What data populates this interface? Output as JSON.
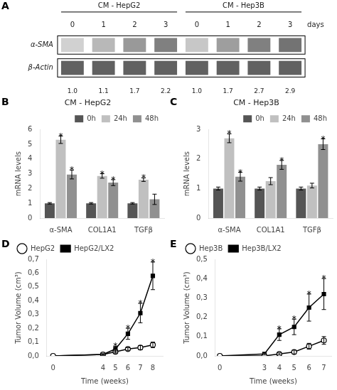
{
  "chart_data": [
    {
      "type": "blot",
      "annotations": [
        "A",
        "α-SMA",
        "β-Actin"
      ],
      "xlabel": "days",
      "categories": [
        0,
        1,
        2,
        3
      ],
      "series": [
        {
          "name": "CM - HepG2",
          "values": [
            1.0,
            1.1,
            1.7,
            2.2
          ],
          "value_labels": [
            "1.0",
            "1.1",
            "1.7",
            "2.2"
          ]
        },
        {
          "name": "CM - Hep3B",
          "values": [
            1.0,
            1.7,
            2.7,
            2.9
          ],
          "value_labels": [
            "1.0",
            "1.7",
            "2.7",
            "2.9"
          ]
        }
      ],
      "data_labels": true
    },
    {
      "type": "bar",
      "title": "CM - HepG2",
      "annotations": [
        "B"
      ],
      "ylabel": "mRNA levels",
      "categories": [
        "α-SMA",
        "COL1A1",
        "TGFβ"
      ],
      "series": [
        {
          "name": "0h",
          "color": "#555555",
          "values": [
            1.0,
            1.0,
            1.0
          ],
          "errors": [
            0.05,
            0.05,
            0.05
          ]
        },
        {
          "name": "24h",
          "color": "#c0c0c0",
          "values": [
            5.3,
            2.85,
            2.6
          ],
          "errors": [
            0.25,
            0.15,
            0.12
          ],
          "annotations": [
            "*",
            "*",
            "*"
          ]
        },
        {
          "name": "48h",
          "color": "#909090",
          "values": [
            2.95,
            2.4,
            1.27
          ],
          "errors": [
            0.3,
            0.2,
            0.35
          ],
          "annotations": [
            "*",
            "*",
            null
          ]
        }
      ],
      "ylim": [
        0,
        6
      ],
      "yticks": [
        0,
        1,
        2,
        3,
        4,
        5,
        6
      ],
      "grid": false,
      "legend": "upper right"
    },
    {
      "type": "bar",
      "title": "CM - Hep3B",
      "annotations": [
        "C"
      ],
      "ylabel": "mRNA levels",
      "categories": [
        "α-SMA",
        "COL1A1",
        "TGFβ"
      ],
      "series": [
        {
          "name": "0h",
          "color": "#555555",
          "values": [
            1.0,
            1.0,
            1.0
          ],
          "errors": [
            0.05,
            0.05,
            0.05
          ]
        },
        {
          "name": "24h",
          "color": "#c0c0c0",
          "values": [
            2.7,
            1.25,
            1.1
          ],
          "errors": [
            0.15,
            0.12,
            0.08
          ],
          "annotations": [
            "*",
            null,
            null
          ]
        },
        {
          "name": "48h",
          "color": "#909090",
          "values": [
            1.4,
            1.8,
            2.5
          ],
          "errors": [
            0.15,
            0.15,
            0.18
          ],
          "annotations": [
            "*",
            "*",
            "*"
          ]
        }
      ],
      "ylim": [
        0,
        3
      ],
      "yticks": [
        0,
        1,
        2,
        3
      ],
      "grid": false,
      "legend": "upper right"
    },
    {
      "type": "line",
      "annotations": [
        "D"
      ],
      "xlabel": "Time (weeks)",
      "ylabel": "Tumor Volume (cm³)",
      "x": [
        0,
        4,
        5,
        6,
        7,
        8
      ],
      "series": [
        {
          "name": "HepG2",
          "color": "#000000",
          "marker": "circle_open",
          "values": [
            0.0,
            0.01,
            0.03,
            0.05,
            0.06,
            0.08
          ],
          "errors": [
            0.0,
            0.005,
            0.01,
            0.01,
            0.015,
            0.02
          ]
        },
        {
          "name": "HepG2/LX2",
          "color": "#000000",
          "marker": "square",
          "values": [
            0.0,
            0.01,
            0.05,
            0.16,
            0.31,
            0.58
          ],
          "errors": [
            0.0,
            0.005,
            0.02,
            0.04,
            0.07,
            0.1
          ],
          "annotations": [
            null,
            null,
            "*",
            "*",
            "*",
            "*"
          ]
        }
      ],
      "xlim": [
        -0.5,
        8.8
      ],
      "xticks": [
        0,
        4,
        5,
        6,
        7,
        8
      ],
      "ylim": [
        0,
        0.7
      ],
      "yticks": [
        {
          "value": 0.0,
          "label": "0,0"
        },
        {
          "value": 0.1,
          "label": "0,1"
        },
        {
          "value": 0.2,
          "label": "0,2"
        },
        {
          "value": 0.3,
          "label": "0,3"
        },
        {
          "value": 0.4,
          "label": "0,4"
        },
        {
          "value": 0.5,
          "label": "0,5"
        },
        {
          "value": 0.6,
          "label": "0,6"
        },
        {
          "value": 0.7,
          "label": "0,7"
        }
      ],
      "grid": false,
      "legend": "upper left"
    },
    {
      "type": "line",
      "annotations": [
        "E"
      ],
      "xlabel": "Time (weeks)",
      "ylabel": "Tumor Volume (cm³)",
      "x": [
        0,
        3,
        4,
        5,
        6,
        7
      ],
      "series": [
        {
          "name": "Hep3B",
          "color": "#000000",
          "marker": "circle_open",
          "values": [
            0.0,
            0.0,
            0.01,
            0.02,
            0.05,
            0.08
          ],
          "errors": [
            0.0,
            0.0,
            0.005,
            0.01,
            0.015,
            0.02
          ]
        },
        {
          "name": "Hep3B/LX2",
          "color": "#000000",
          "marker": "square",
          "values": [
            0.0,
            0.01,
            0.11,
            0.15,
            0.25,
            0.32
          ],
          "errors": [
            0.0,
            0.005,
            0.03,
            0.04,
            0.07,
            0.08
          ],
          "annotations": [
            null,
            null,
            "*",
            "*",
            "*",
            "*"
          ]
        }
      ],
      "xlim": [
        -0.3,
        7.5
      ],
      "xticks": [
        0,
        3,
        4,
        5,
        6,
        7
      ],
      "ylim": [
        0,
        0.5
      ],
      "yticks": [
        {
          "value": 0.0,
          "label": "0,0"
        },
        {
          "value": 0.1,
          "label": "0,1"
        },
        {
          "value": 0.2,
          "label": "0,2"
        },
        {
          "value": 0.3,
          "label": "0,3"
        },
        {
          "value": 0.4,
          "label": "0,4"
        },
        {
          "value": 0.5,
          "label": "0,5"
        }
      ],
      "grid": false,
      "legend": "upper left"
    }
  ]
}
